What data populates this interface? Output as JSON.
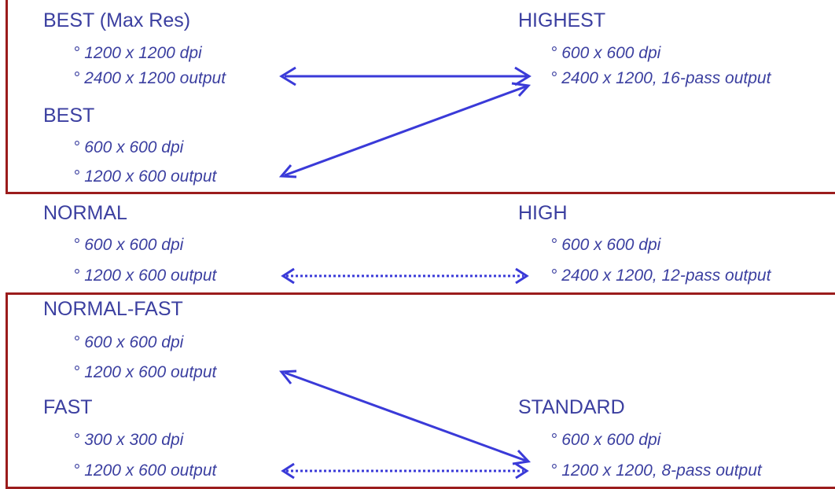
{
  "colors": {
    "text": "#3b3fa0",
    "arrow": "#3a3ad8",
    "box": "#9b1c1c"
  },
  "left": [
    {
      "title": "BEST (Max Res)",
      "lines": [
        "° 1200 x 1200 dpi",
        "° 2400 x 1200 output"
      ]
    },
    {
      "title": "BEST",
      "lines": [
        "° 600 x 600 dpi",
        "° 1200 x 600 output"
      ]
    },
    {
      "title": "NORMAL",
      "lines": [
        "° 600 x 600 dpi",
        "° 1200 x 600 output"
      ]
    },
    {
      "title": "NORMAL-FAST",
      "lines": [
        "° 600 x 600 dpi",
        "° 1200 x 600 output"
      ]
    },
    {
      "title": "FAST",
      "lines": [
        "° 300 x 300 dpi",
        "° 1200 x 600 output"
      ]
    }
  ],
  "right": [
    {
      "title": "HIGHEST",
      "lines": [
        "° 600 x 600 dpi",
        "° 2400 x 1200, 16-pass output"
      ]
    },
    {
      "title": "HIGH",
      "lines": [
        "° 600 x 600 dpi",
        "° 2400 x 1200, 12-pass output"
      ]
    },
    {
      "title": "STANDARD",
      "lines": [
        "° 600 x 600 dpi",
        "° 1200 x 1200, 8-pass output"
      ]
    }
  ],
  "mappings": [
    {
      "from": "BEST (Max Res)",
      "to": "HIGHEST",
      "style": "solid",
      "direction": "both"
    },
    {
      "from": "BEST",
      "to": "HIGHEST",
      "style": "solid",
      "direction": "both"
    },
    {
      "from": "NORMAL",
      "to": "HIGH",
      "style": "dotted",
      "direction": "both"
    },
    {
      "from": "NORMAL-FAST",
      "to": "STANDARD",
      "style": "solid",
      "direction": "both"
    },
    {
      "from": "FAST",
      "to": "STANDARD",
      "style": "dotted",
      "direction": "both"
    }
  ]
}
